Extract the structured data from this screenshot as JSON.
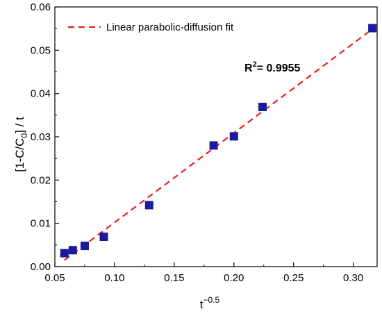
{
  "chart_data": {
    "type": "scatter",
    "xlabel_base": "t",
    "xlabel_sup": "−0.5",
    "ylabel_main": "[1-C/C",
    "ylabel_sub": "0",
    "ylabel_end": "] / t",
    "xlim": [
      0.05,
      0.32
    ],
    "ylim": [
      0.0,
      0.06
    ],
    "x_ticks": [
      0.05,
      0.1,
      0.15,
      0.2,
      0.25,
      0.3
    ],
    "x_tick_labels": [
      "0.05",
      "0.10",
      "0.15",
      "0.20",
      "0.25",
      "0.30"
    ],
    "y_ticks": [
      0.0,
      0.01,
      0.02,
      0.03,
      0.04,
      0.05,
      0.06
    ],
    "y_tick_labels": [
      "0.00",
      "0.01",
      "0.02",
      "0.03",
      "0.04",
      "0.05",
      "0.06"
    ],
    "grid": false,
    "legend_placement": "top-left",
    "legend_label": "Linear parabolic-diffusion fit",
    "annotation_base": "R",
    "annotation_sup": "2",
    "annotation_rest": "= 0.9955",
    "points": {
      "x": [
        0.058,
        0.065,
        0.075,
        0.091,
        0.129,
        0.183,
        0.2,
        0.224,
        0.316
      ],
      "y": [
        0.0031,
        0.0038,
        0.0048,
        0.0069,
        0.0142,
        0.028,
        0.0301,
        0.0369,
        0.0551
      ]
    },
    "fit_line": {
      "x": [
        0.058,
        0.318
      ],
      "y": [
        0.0015,
        0.0553
      ]
    },
    "colors": {
      "points": "#1a1a9c",
      "fit_line": "#e8201a",
      "axes": "#000000"
    }
  }
}
